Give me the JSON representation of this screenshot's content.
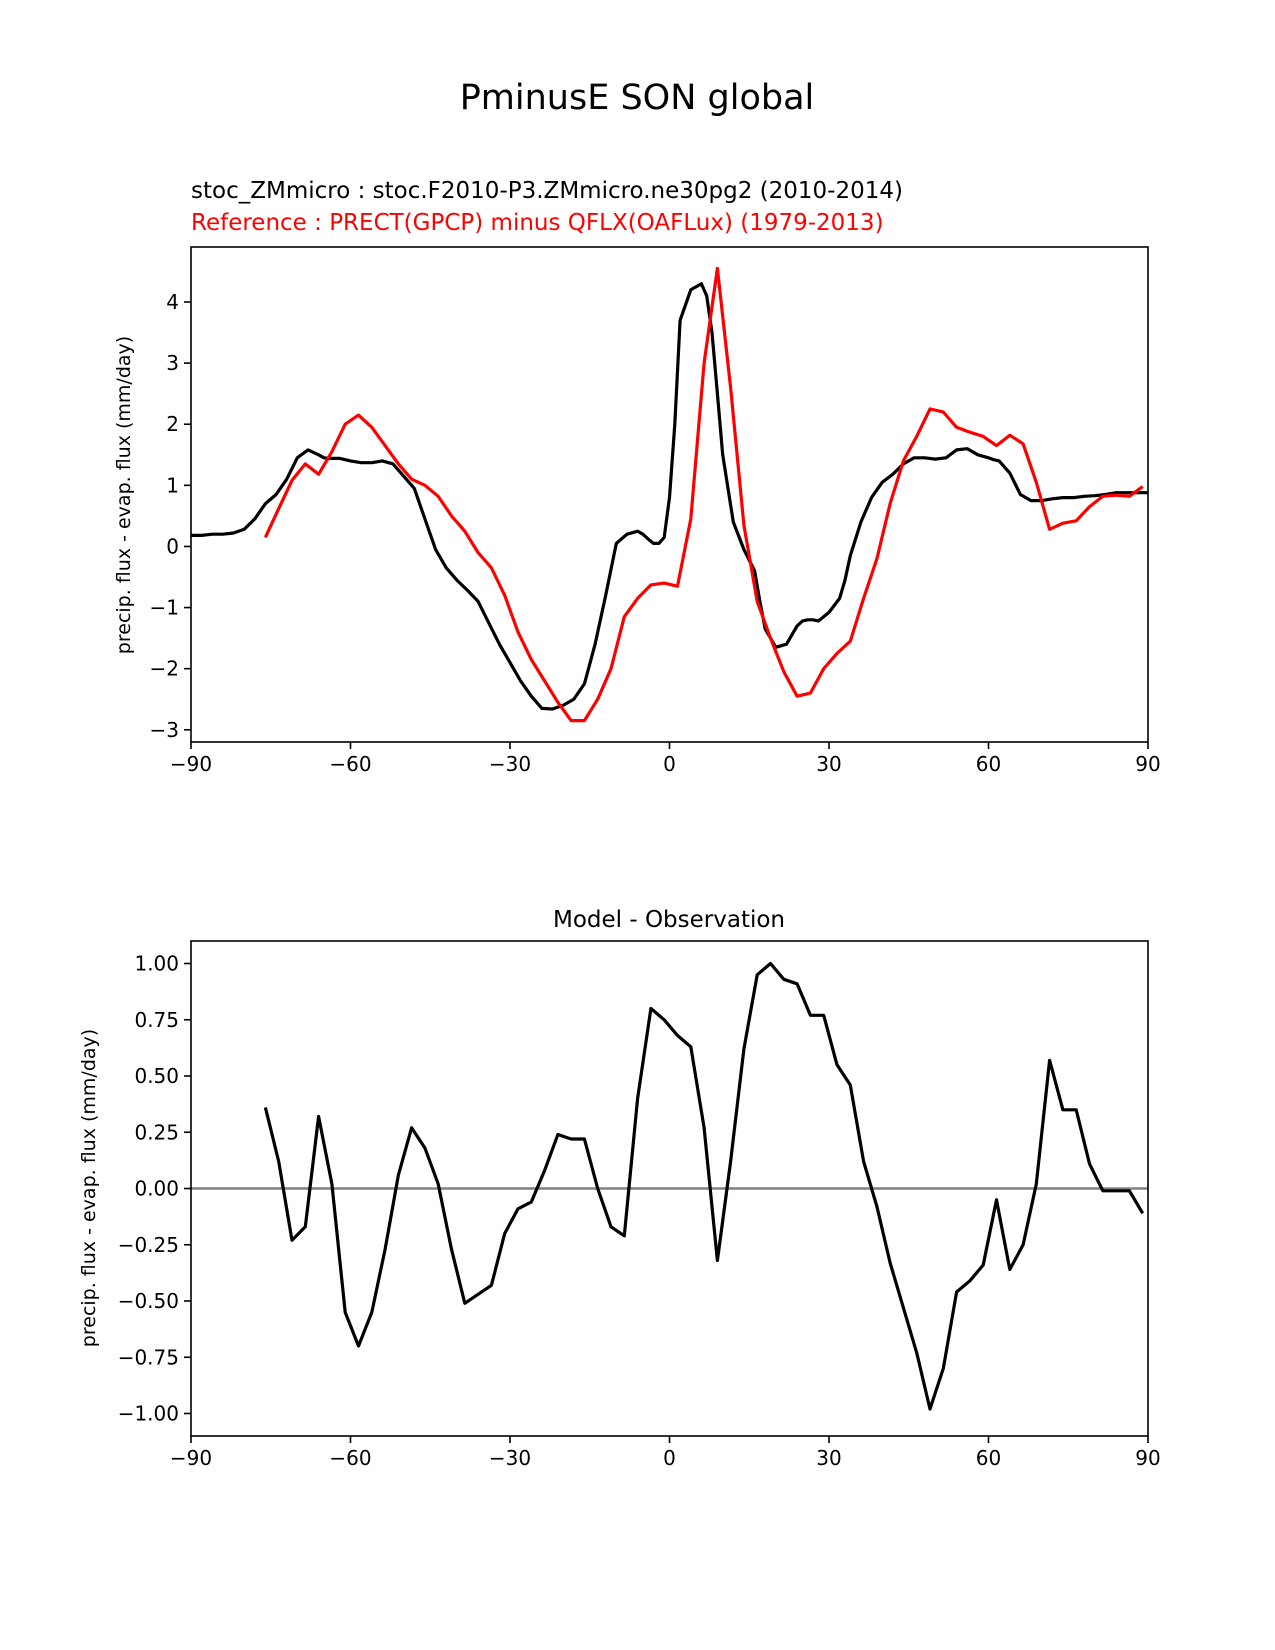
{
  "figure": {
    "title": "PminusE SON global"
  },
  "chart_data": [
    {
      "type": "line",
      "model_label": "stoc_ZMmicro : stoc.F2010-P3.ZMmicro.ne30pg2 (2010-2014)",
      "reference_label": "Reference : PRECT(GPCP) minus QFLX(OAFLux) (1979-2013)",
      "title": "",
      "xlabel": "",
      "ylabel": "precip. flux - evap. flux (mm/day)",
      "xlim": [
        -90,
        90
      ],
      "ylim": [
        -3.2,
        4.9
      ],
      "xticks": [
        -90,
        -60,
        -30,
        0,
        30,
        60,
        90
      ],
      "xtick_labels": [
        "−90",
        "−60",
        "−30",
        "0",
        "30",
        "60",
        "90"
      ],
      "yticks": [
        -3,
        -2,
        -1,
        0,
        1,
        2,
        3,
        4
      ],
      "ytick_labels": [
        "−3",
        "−2",
        "−1",
        "0",
        "1",
        "2",
        "3",
        "4"
      ],
      "series": [
        {
          "name": "Model",
          "color": "#000000",
          "x": [
            -90,
            -88,
            -86,
            -84,
            -82,
            -80,
            -78,
            -76,
            -74,
            -72,
            -70,
            -68,
            -66,
            -65,
            -64,
            -62,
            -60,
            -58,
            -56,
            -54,
            -52,
            -50,
            -48,
            -46,
            -44,
            -42,
            -40,
            -38,
            -36,
            -34,
            -32,
            -30,
            -28,
            -26,
            -24,
            -22,
            -20,
            -18,
            -16,
            -14,
            -12,
            -10,
            -8,
            -6,
            -5,
            -4,
            -3,
            -2,
            -1,
            0,
            1,
            2,
            4,
            6,
            7,
            8,
            9,
            10,
            12,
            14,
            16,
            17,
            18,
            20,
            22,
            24,
            25,
            26,
            27,
            28,
            30,
            32,
            33,
            34,
            36,
            38,
            40,
            42,
            44,
            46,
            48,
            50,
            52,
            54,
            56,
            58,
            60,
            61,
            62,
            64,
            66,
            68,
            70,
            72,
            74,
            76,
            78,
            80,
            82,
            84,
            86,
            88,
            90
          ],
          "values": [
            0.18,
            0.18,
            0.2,
            0.2,
            0.22,
            0.28,
            0.45,
            0.7,
            0.85,
            1.1,
            1.45,
            1.58,
            1.5,
            1.45,
            1.44,
            1.44,
            1.4,
            1.37,
            1.37,
            1.4,
            1.35,
            1.15,
            0.95,
            0.45,
            -0.05,
            -0.35,
            -0.55,
            -0.72,
            -0.9,
            -1.25,
            -1.6,
            -1.9,
            -2.2,
            -2.45,
            -2.65,
            -2.66,
            -2.6,
            -2.5,
            -2.25,
            -1.6,
            -0.8,
            0.05,
            0.2,
            0.25,
            0.2,
            0.12,
            0.05,
            0.05,
            0.15,
            0.8,
            2.0,
            3.7,
            4.2,
            4.3,
            4.1,
            3.5,
            2.5,
            1.5,
            0.4,
            -0.05,
            -0.4,
            -0.9,
            -1.35,
            -1.65,
            -1.6,
            -1.3,
            -1.22,
            -1.2,
            -1.2,
            -1.22,
            -1.08,
            -0.85,
            -0.55,
            -0.15,
            0.4,
            0.8,
            1.05,
            1.18,
            1.35,
            1.45,
            1.45,
            1.43,
            1.45,
            1.58,
            1.6,
            1.5,
            1.45,
            1.42,
            1.4,
            1.2,
            0.85,
            0.75,
            0.75,
            0.78,
            0.8,
            0.8,
            0.82,
            0.83,
            0.85,
            0.88,
            0.88,
            0.88,
            0.88
          ]
        },
        {
          "name": "Reference",
          "color": "#ff0000",
          "x": [
            -76,
            -73.5,
            -71,
            -68.5,
            -66,
            -63.5,
            -61,
            -58.5,
            -56,
            -53.5,
            -51,
            -48.5,
            -46,
            -43.5,
            -41,
            -38.5,
            -36,
            -33.5,
            -31,
            -28.5,
            -26,
            -23.5,
            -21,
            -18.5,
            -16,
            -13.5,
            -11,
            -8.5,
            -6,
            -3.5,
            -1,
            1.5,
            4,
            6.5,
            9,
            11.5,
            14,
            16.5,
            19,
            21.5,
            24,
            26.5,
            29,
            31.5,
            34,
            36.5,
            39,
            41.5,
            44,
            46.5,
            49,
            51.5,
            54,
            56.5,
            59,
            61.5,
            64,
            66.5,
            69,
            71.5,
            74,
            76.5,
            79,
            81.5,
            84,
            86.5,
            89
          ],
          "values": [
            0.15,
            0.62,
            1.08,
            1.35,
            1.18,
            1.55,
            2.0,
            2.15,
            1.95,
            1.65,
            1.35,
            1.1,
            1.0,
            0.82,
            0.5,
            0.25,
            -0.1,
            -0.35,
            -0.8,
            -1.4,
            -1.85,
            -2.2,
            -2.55,
            -2.85,
            -2.85,
            -2.5,
            -2.0,
            -1.15,
            -0.85,
            -0.63,
            -0.6,
            -0.65,
            0.45,
            3.0,
            4.55,
            2.6,
            0.35,
            -0.9,
            -1.5,
            -2.05,
            -2.45,
            -2.4,
            -2.0,
            -1.75,
            -1.55,
            -0.85,
            -0.2,
            0.7,
            1.4,
            1.8,
            2.25,
            2.2,
            1.95,
            1.87,
            1.8,
            1.65,
            1.82,
            1.68,
            1.05,
            0.28,
            0.38,
            0.42,
            0.65,
            0.82,
            0.84,
            0.82,
            0.98
          ]
        }
      ]
    },
    {
      "type": "line",
      "title": "Model - Observation",
      "xlabel": "",
      "ylabel": "precip. flux - evap. flux (mm/day)",
      "xlim": [
        -90,
        90
      ],
      "ylim": [
        -1.1,
        1.1
      ],
      "xticks": [
        -90,
        -60,
        -30,
        0,
        30,
        60,
        90
      ],
      "xtick_labels": [
        "−90",
        "−60",
        "−30",
        "0",
        "30",
        "60",
        "90"
      ],
      "yticks": [
        -1.0,
        -0.75,
        -0.5,
        -0.25,
        0.0,
        0.25,
        0.5,
        0.75,
        1.0
      ],
      "ytick_labels": [
        "−1.00",
        "−0.75",
        "−0.50",
        "−0.25",
        "0.00",
        "0.25",
        "0.50",
        "0.75",
        "1.00"
      ],
      "zero_line": true,
      "series": [
        {
          "name": "Model - Observation",
          "color": "#000000",
          "x": [
            -76,
            -73.5,
            -71,
            -68.5,
            -66,
            -63.5,
            -61,
            -58.5,
            -56,
            -53.5,
            -51,
            -48.5,
            -46,
            -43.5,
            -41,
            -38.5,
            -36,
            -33.5,
            -31,
            -28.5,
            -26,
            -23.5,
            -21,
            -18.5,
            -16,
            -13.5,
            -11,
            -8.5,
            -6,
            -3.5,
            -1,
            1.5,
            4,
            6.5,
            9,
            11.5,
            14,
            16.5,
            19,
            21.5,
            24,
            26.5,
            29,
            31.5,
            34,
            36.5,
            39,
            41.5,
            44,
            46.5,
            49,
            51.5,
            54,
            56.5,
            59,
            61.5,
            64,
            66.5,
            69,
            71.5,
            74,
            76.5,
            79,
            81.5,
            84,
            86.5,
            89
          ],
          "values": [
            0.36,
            0.12,
            -0.23,
            -0.17,
            0.32,
            0.02,
            -0.55,
            -0.7,
            -0.55,
            -0.27,
            0.06,
            0.27,
            0.18,
            0.02,
            -0.27,
            -0.51,
            -0.47,
            -0.43,
            -0.2,
            -0.09,
            -0.06,
            0.08,
            0.24,
            0.22,
            0.22,
            -0.0,
            -0.17,
            -0.21,
            0.4,
            0.8,
            0.75,
            0.68,
            0.63,
            0.27,
            -0.32,
            0.12,
            0.62,
            0.95,
            1.0,
            0.93,
            0.91,
            0.77,
            0.77,
            0.55,
            0.46,
            0.12,
            -0.08,
            -0.33,
            -0.53,
            -0.73,
            -0.98,
            -0.8,
            -0.46,
            -0.41,
            -0.34,
            -0.05,
            -0.36,
            -0.25,
            0.02,
            0.57,
            0.35,
            0.35,
            0.11,
            -0.01,
            -0.01,
            -0.01,
            -0.11
          ]
        }
      ]
    }
  ]
}
